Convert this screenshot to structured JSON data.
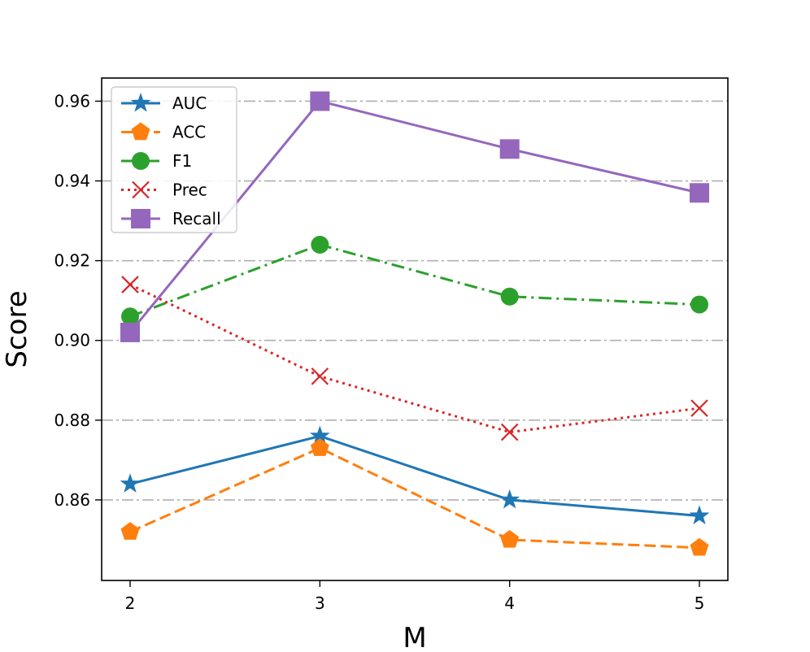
{
  "chart_data": {
    "type": "line",
    "title": "",
    "xlabel": "M",
    "ylabel": "Score",
    "x": [
      2,
      3,
      4,
      5
    ],
    "xticks": [
      "2",
      "3",
      "4",
      "5"
    ],
    "yticks": [
      "0.86",
      "0.88",
      "0.90",
      "0.92",
      "0.94",
      "0.96"
    ],
    "yticks_values": [
      0.86,
      0.88,
      0.9,
      0.92,
      0.94,
      0.96
    ],
    "xlim": [
      1.85,
      5.15
    ],
    "ylim": [
      0.8398,
      0.9658
    ],
    "grid": "horizontal",
    "legend_position": "upper-left",
    "series": [
      {
        "name": "AUC",
        "values": [
          0.864,
          0.876,
          0.86,
          0.856
        ],
        "color": "#1f77b4",
        "marker": "star",
        "linestyle": "solid"
      },
      {
        "name": "ACC",
        "values": [
          0.852,
          0.873,
          0.85,
          0.848
        ],
        "color": "#ff7f0e",
        "marker": "pentagon",
        "linestyle": "dashed"
      },
      {
        "name": "F1",
        "values": [
          0.906,
          0.924,
          0.911,
          0.909
        ],
        "color": "#2ca02c",
        "marker": "circle",
        "linestyle": "dashdot"
      },
      {
        "name": "Prec",
        "values": [
          0.914,
          0.891,
          0.877,
          0.883
        ],
        "color": "#d62728",
        "marker": "x",
        "linestyle": "dotted"
      },
      {
        "name": "Recall",
        "values": [
          0.902,
          0.96,
          0.948,
          0.937
        ],
        "color": "#9467bd",
        "marker": "square",
        "linestyle": "solid"
      }
    ]
  }
}
